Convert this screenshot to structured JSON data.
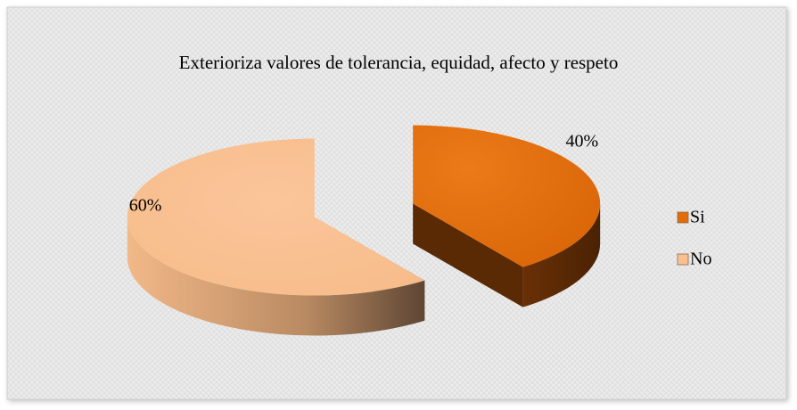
{
  "chart_data": {
    "type": "pie",
    "title": "Exterioriza valores de tolerancia, equidad, afecto y respeto",
    "categories": [
      "Si",
      "No"
    ],
    "values": [
      40,
      60
    ],
    "value_labels": [
      "40%",
      "60%"
    ],
    "colors": [
      "#E36C09",
      "#FAC090"
    ],
    "legend": "right",
    "exploded": true,
    "three_d": true
  }
}
